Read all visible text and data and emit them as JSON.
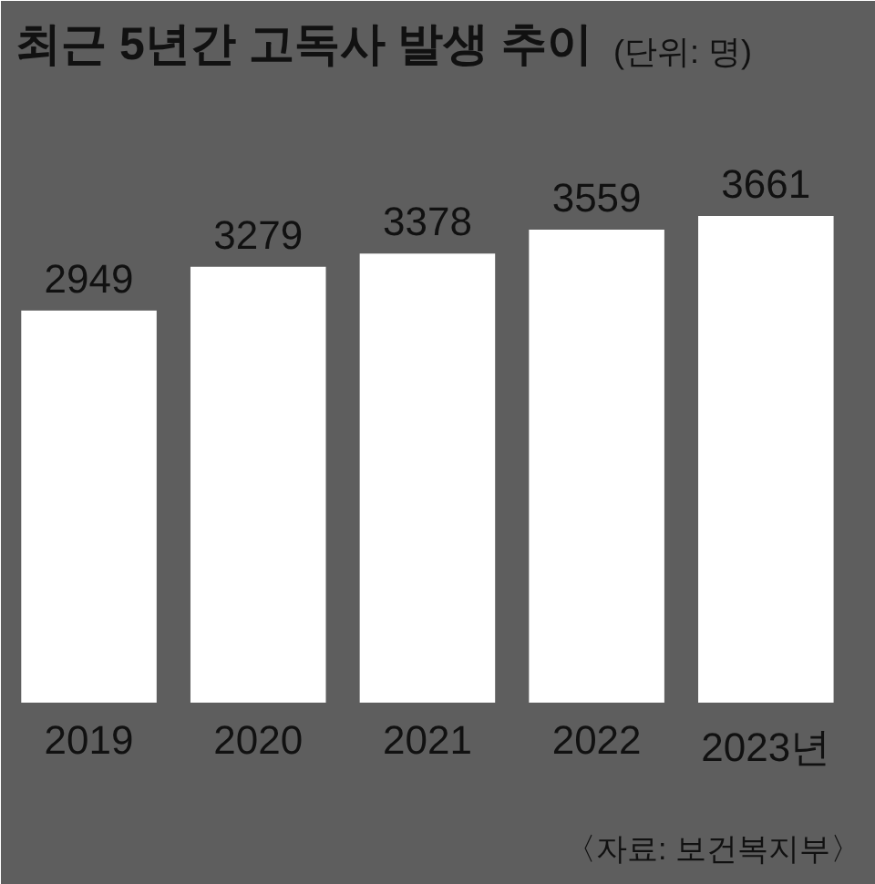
{
  "chart_data": {
    "type": "bar",
    "title": "최근 5년간 고독사 발생 추이",
    "subtitle": "(단위: 명)",
    "categories": [
      "2019",
      "2020",
      "2021",
      "2022",
      "2023년"
    ],
    "values": [
      2949,
      3279,
      3378,
      3559,
      3661
    ],
    "color": "#ffffff",
    "data_labels": true,
    "grid": false,
    "annotations": [
      "〈자료: 보건복지부〉"
    ]
  }
}
